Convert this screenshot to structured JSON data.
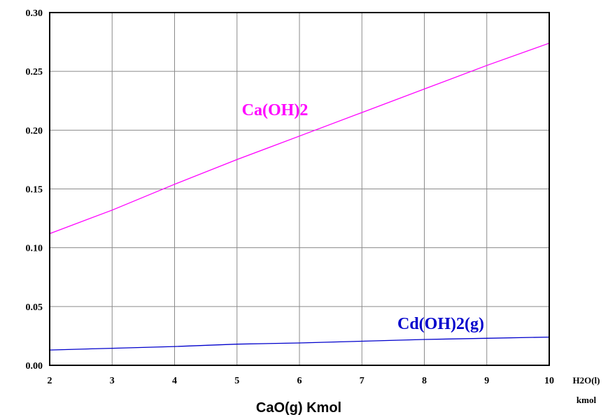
{
  "chart_data": {
    "type": "line",
    "title": "",
    "xlabel": "CaO(g) Kmol",
    "ylabel": "",
    "xlim": [
      2,
      10
    ],
    "ylim": [
      0,
      0.3
    ],
    "grid": true,
    "x_ticks": [
      "2",
      "3",
      "4",
      "5",
      "6",
      "7",
      "8",
      "9",
      "10"
    ],
    "y_ticks": [
      "0.00",
      "0.05",
      "0.10",
      "0.15",
      "0.20",
      "0.25",
      "0.30"
    ],
    "side_label": [
      "H2O(l)",
      "kmol"
    ],
    "series": [
      {
        "name": "Ca(OH)2",
        "color": "#ff00ff",
        "x": [
          2,
          3,
          4,
          5,
          6,
          7,
          8,
          9,
          10
        ],
        "values": [
          0.112,
          0.132,
          0.154,
          0.175,
          0.195,
          0.215,
          0.235,
          0.255,
          0.274
        ]
      },
      {
        "name": "Cd(OH)2(g)",
        "color": "#0000cc",
        "x": [
          2,
          3,
          4,
          5,
          6,
          7,
          8,
          9,
          10
        ],
        "values": [
          0.013,
          0.0145,
          0.016,
          0.018,
          0.019,
          0.0205,
          0.022,
          0.023,
          0.024
        ]
      }
    ]
  }
}
